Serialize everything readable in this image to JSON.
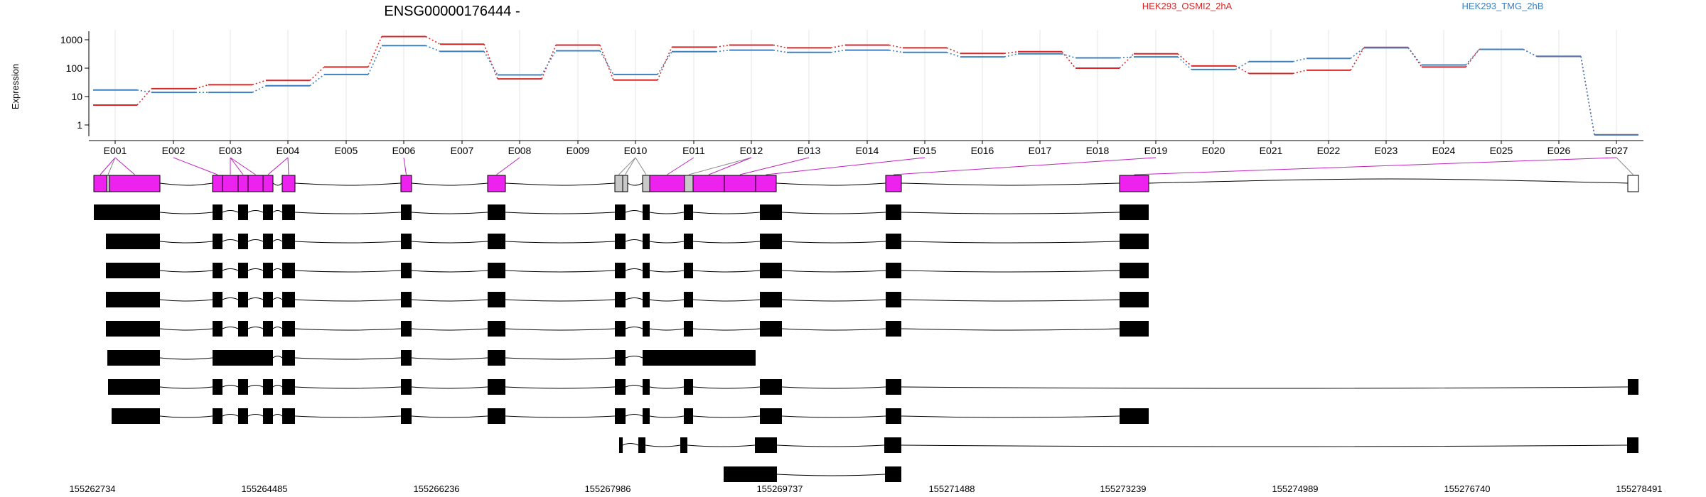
{
  "chart_data": {
    "type": "line",
    "title": "ENSG00000176444 -",
    "ylabel": "Expression",
    "y_scale": "log",
    "y_ticks": [
      "1",
      "10",
      "100",
      "1000"
    ],
    "categories": [
      "E001",
      "E002",
      "E003",
      "E004",
      "E005",
      "E006",
      "E007",
      "E008",
      "E009",
      "E010",
      "E011",
      "E012",
      "E013",
      "E014",
      "E015",
      "E016",
      "E017",
      "E018",
      "E019",
      "E020",
      "E021",
      "E022",
      "E023",
      "E024",
      "E025",
      "E026",
      "E027"
    ],
    "series": [
      {
        "name": "HEK293_OSMI2_2hA",
        "color": "#d62728",
        "values": [
          5,
          19,
          26,
          37,
          110,
          1300,
          700,
          42,
          650,
          38,
          550,
          650,
          520,
          650,
          520,
          330,
          380,
          100,
          320,
          120,
          65,
          85,
          540,
          110,
          460,
          260,
          0.45
        ]
      },
      {
        "name": "HEK293_TMG_2hB",
        "color": "#3d7fbf",
        "values": [
          17,
          14,
          14,
          24,
          60,
          620,
          390,
          58,
          410,
          60,
          380,
          430,
          360,
          430,
          360,
          250,
          320,
          230,
          250,
          90,
          170,
          220,
          520,
          130,
          460,
          260,
          0.45
        ]
      }
    ],
    "genomic_ticks": [
      "155262734",
      "155264485",
      "155266236",
      "155267986",
      "155269737",
      "155271488",
      "155273239",
      "155274989",
      "155276740",
      "155278491"
    ],
    "exon_colors": {
      "expressed": "#ee22ee",
      "low": "#c8c8c8",
      "none": "#ffffff",
      "transcript": "#000000"
    }
  }
}
